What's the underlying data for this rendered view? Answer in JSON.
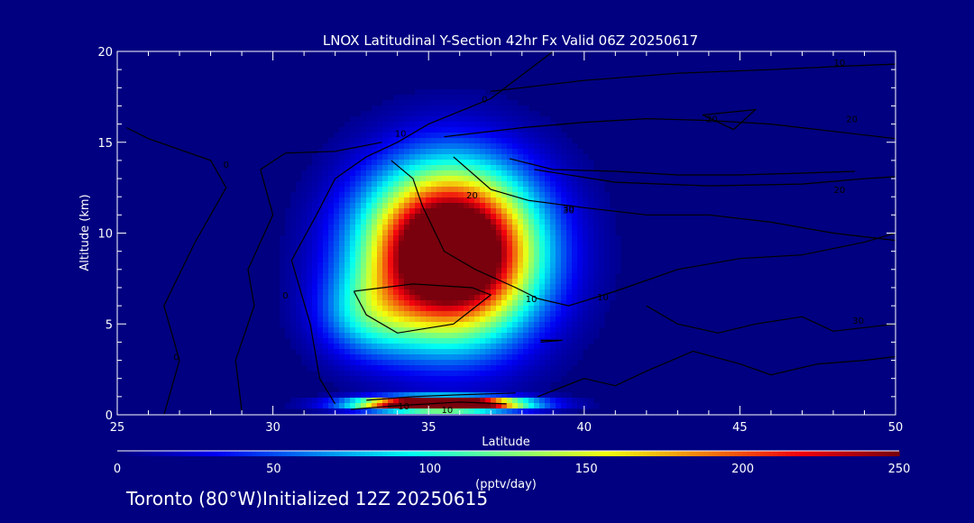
{
  "chart_data": {
    "type": "heatmap",
    "title": "LNOX Latitudinal Y-Section 42hr  Fx Valid 06Z 20250617",
    "xlabel": "Latitude",
    "ylabel": "Altitude (km)",
    "xlim": [
      25,
      50
    ],
    "ylim": [
      0,
      20
    ],
    "xticks": [
      "25",
      "30",
      "35",
      "40",
      "45",
      "50"
    ],
    "yticks": [
      "0",
      "5",
      "10",
      "15",
      "20"
    ],
    "colorbar": {
      "label": "(pptv/day)",
      "range": [
        0,
        250
      ],
      "ticks": [
        "0",
        "50",
        "100",
        "150",
        "200",
        "250"
      ]
    },
    "blobs": [
      {
        "center": [
          35.7,
          8.9
        ],
        "sigma": [
          1.85,
          3.1
        ],
        "peak": 360
      },
      {
        "center": [
          33.0,
          5.5
        ],
        "sigma": [
          1.1,
          1.6
        ],
        "peak": 60
      },
      {
        "center": [
          35.4,
          0.6
        ],
        "sigma": [
          1.7,
          0.25
        ],
        "peak": 420
      }
    ],
    "contour_labels": [
      "0",
      "0",
      "0",
      "0",
      "10",
      "10",
      "10",
      "20",
      "20",
      "30",
      "30",
      "10",
      "20",
      "20",
      "10",
      "30",
      "10"
    ],
    "background_color": "#000080",
    "contour_color": "#000000"
  },
  "footer": "Toronto (80°W)Initialized 12Z 20250615"
}
